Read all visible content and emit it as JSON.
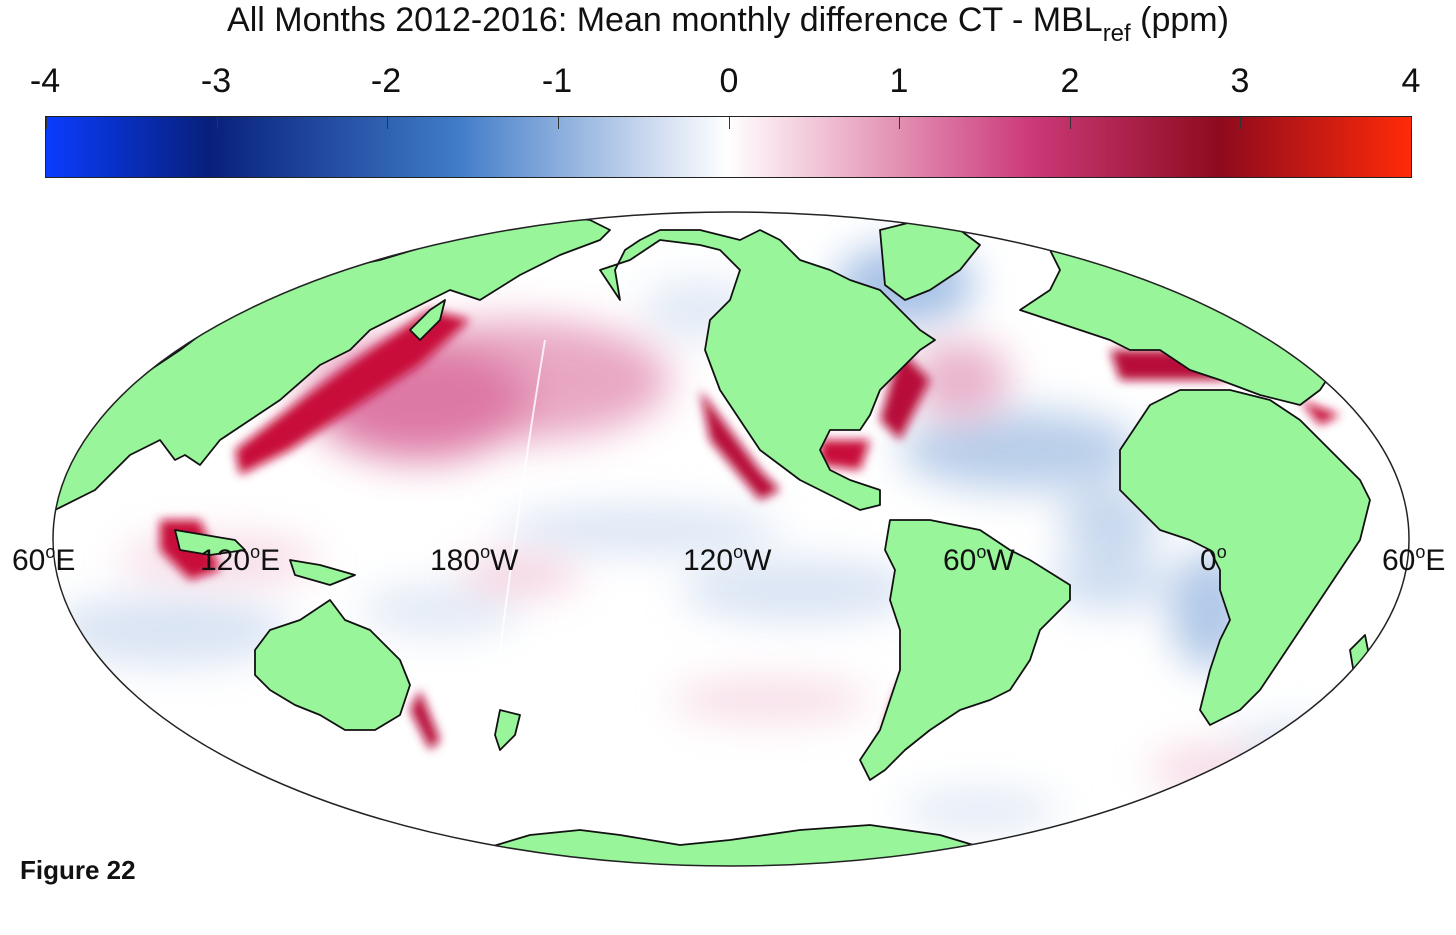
{
  "title": {
    "main": "All Months 2012-2016: Mean monthly difference CT - MBL",
    "subscript": "ref",
    "suffix": " (ppm)"
  },
  "colorbar": {
    "tick_labels": [
      "-4",
      "-3",
      "-2",
      "-1",
      "0",
      "1",
      "2",
      "3",
      "4"
    ],
    "range": [
      -4,
      4
    ],
    "colors": {
      "min": "#0a3cff",
      "neg_dark": "#08207a",
      "neg_mid": "#3f7bc8",
      "neg_light": "#c9d8ee",
      "zero": "#ffffff",
      "pos_light": "#f2c9da",
      "pos_mid": "#cc3a7a",
      "pos_dark": "#8e0a1e",
      "max": "#ff2a08"
    }
  },
  "map": {
    "projection": "mollweide",
    "land_color": "#98f59a",
    "ocean_color": "#ffffff",
    "lon_labels": [
      {
        "deg": "60",
        "dir": "E"
      },
      {
        "deg": "120",
        "dir": "E"
      },
      {
        "deg": "180",
        "dir": "W"
      },
      {
        "deg": "120",
        "dir": "W"
      },
      {
        "deg": "60",
        "dir": "W"
      },
      {
        "deg": "0",
        "dir": ""
      },
      {
        "deg": "60",
        "dir": "E"
      }
    ]
  },
  "figure_label": "Figure 22"
}
